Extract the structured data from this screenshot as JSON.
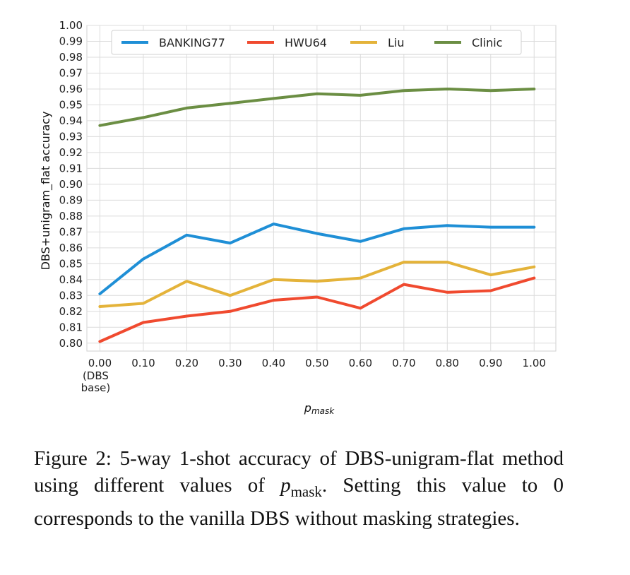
{
  "chart_data": {
    "type": "line",
    "xlabel_base": "p",
    "xlabel_sub": "mask",
    "ylabel": "DBS+unigram_flat accuracy",
    "x": [
      0.0,
      0.1,
      0.2,
      0.3,
      0.4,
      0.5,
      0.6,
      0.7,
      0.8,
      0.9,
      1.0
    ],
    "x_tick_labels": [
      "0.00",
      "0.10",
      "0.20",
      "0.30",
      "0.40",
      "0.50",
      "0.60",
      "0.70",
      "0.80",
      "0.90",
      "1.00"
    ],
    "x_tick_extra": [
      "(DBS",
      "base)"
    ],
    "y_ticks": [
      "0.80",
      "0.81",
      "0.82",
      "0.83",
      "0.84",
      "0.85",
      "0.86",
      "0.87",
      "0.88",
      "0.89",
      "0.90",
      "0.91",
      "0.92",
      "0.93",
      "0.94",
      "0.95",
      "0.96",
      "0.97",
      "0.98",
      "0.99",
      "1.00"
    ],
    "xlim": [
      -0.03,
      1.05
    ],
    "ylim": [
      0.795,
      1.0
    ],
    "grid": true,
    "legend_position": "top",
    "series": [
      {
        "name": "BANKING77",
        "color": "#1f8fd6",
        "values": [
          0.831,
          0.853,
          0.868,
          0.863,
          0.875,
          0.869,
          0.864,
          0.872,
          0.874,
          0.873,
          0.873
        ]
      },
      {
        "name": "HWU64",
        "color": "#f04a2f",
        "values": [
          0.801,
          0.813,
          0.817,
          0.82,
          0.827,
          0.829,
          0.822,
          0.837,
          0.832,
          0.833,
          0.841
        ]
      },
      {
        "name": "Liu",
        "color": "#e4b33a",
        "values": [
          0.823,
          0.825,
          0.839,
          0.83,
          0.84,
          0.839,
          0.841,
          0.851,
          0.851,
          0.843,
          0.848
        ]
      },
      {
        "name": "Clinic",
        "color": "#6b8e43",
        "values": [
          0.937,
          0.942,
          0.948,
          0.951,
          0.954,
          0.957,
          0.956,
          0.959,
          0.96,
          0.959,
          0.96
        ]
      }
    ]
  },
  "caption": {
    "prefix": "Figure 2: 5-way 1-shot accuracy of DBS-unigram-flat method using different values of ",
    "math_base": "p",
    "math_sub": "mask",
    "suffix": ".  Setting this value to 0 corresponds to the vanilla DBS without masking strategies."
  }
}
